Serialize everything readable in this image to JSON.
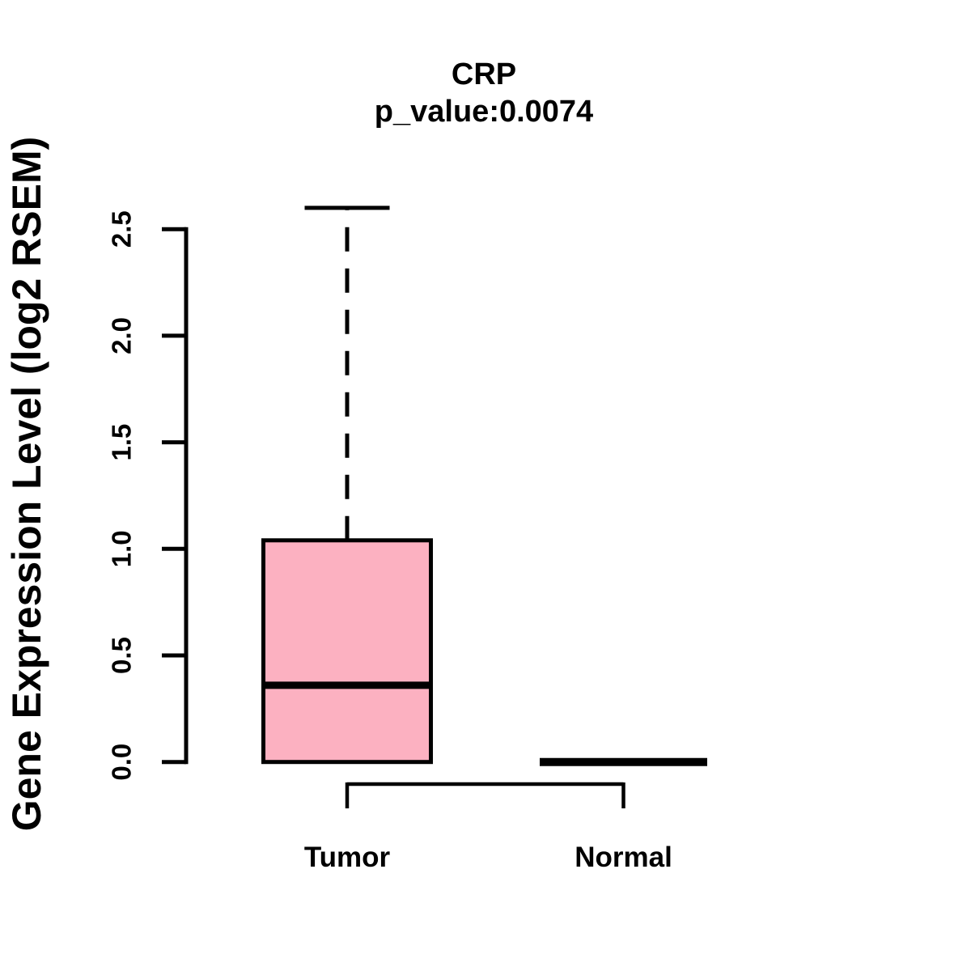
{
  "title": "CRP",
  "subtitle": "p_value:0.0074",
  "chart_data": {
    "type": "box",
    "title": "CRP",
    "subtitle": "p_value:0.0074",
    "xlabel": "",
    "ylabel": "Gene Expression Level (log2 RSEM)",
    "yticks": [
      0.0,
      0.5,
      1.0,
      1.5,
      2.0,
      2.5
    ],
    "ylim": [
      0,
      2.6
    ],
    "grid": false,
    "legend": "none",
    "groups": [
      {
        "label": "Tumor",
        "lower_whisker": 0.0,
        "q1": 0.0,
        "median": 0.36,
        "q3": 1.04,
        "upper_whisker": 2.6
      },
      {
        "label": "Normal",
        "lower_whisker": 0.0,
        "q1": 0.0,
        "median": 0.0,
        "q3": 0.0,
        "upper_whisker": 0.0
      }
    ],
    "colors": {
      "box_fill": "#FCB1C1",
      "line": "#000000",
      "background": "#FFFFFF"
    }
  }
}
